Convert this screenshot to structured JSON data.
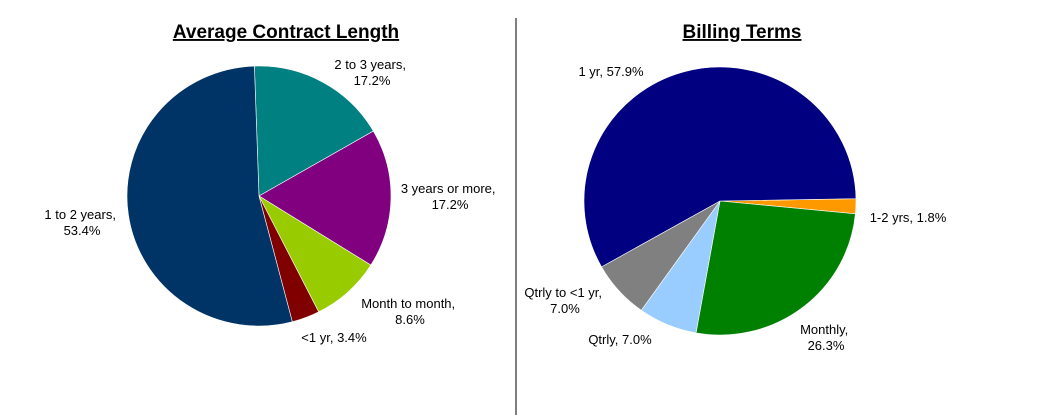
{
  "chart_data": [
    {
      "type": "pie",
      "title": "Average Contract Length",
      "slices": [
        {
          "label": "2 to 3 years",
          "value": 17.2,
          "display": "17.2%",
          "color": "#008080"
        },
        {
          "label": "3 years or more",
          "value": 17.2,
          "display": "17.2%",
          "color": "#800080"
        },
        {
          "label": "Month to month",
          "value": 8.6,
          "display": "8.6%",
          "color": "#99CC00"
        },
        {
          "label": "<1 yr",
          "value": 3.4,
          "display": "3.4%",
          "color": "#800000"
        },
        {
          "label": "1 to 2 years",
          "value": 53.4,
          "display": "53.4%",
          "color": "#003366"
        }
      ]
    },
    {
      "type": "pie",
      "title": "Billing Terms",
      "slices": [
        {
          "label": "1-2 yrs",
          "value": 1.8,
          "display": "1.8%",
          "color": "#FF9900"
        },
        {
          "label": "Monthly",
          "value": 26.3,
          "display": "26.3%",
          "color": "#008000"
        },
        {
          "label": "Qtrly",
          "value": 7.0,
          "display": "7.0%",
          "color": "#99CCFF"
        },
        {
          "label": "Qtrly to <1 yr",
          "value": 7.0,
          "display": "7.0%",
          "color": "#808080"
        },
        {
          "label": "1 yr",
          "value": 57.9,
          "display": "57.9%",
          "color": "#000080"
        }
      ]
    }
  ]
}
